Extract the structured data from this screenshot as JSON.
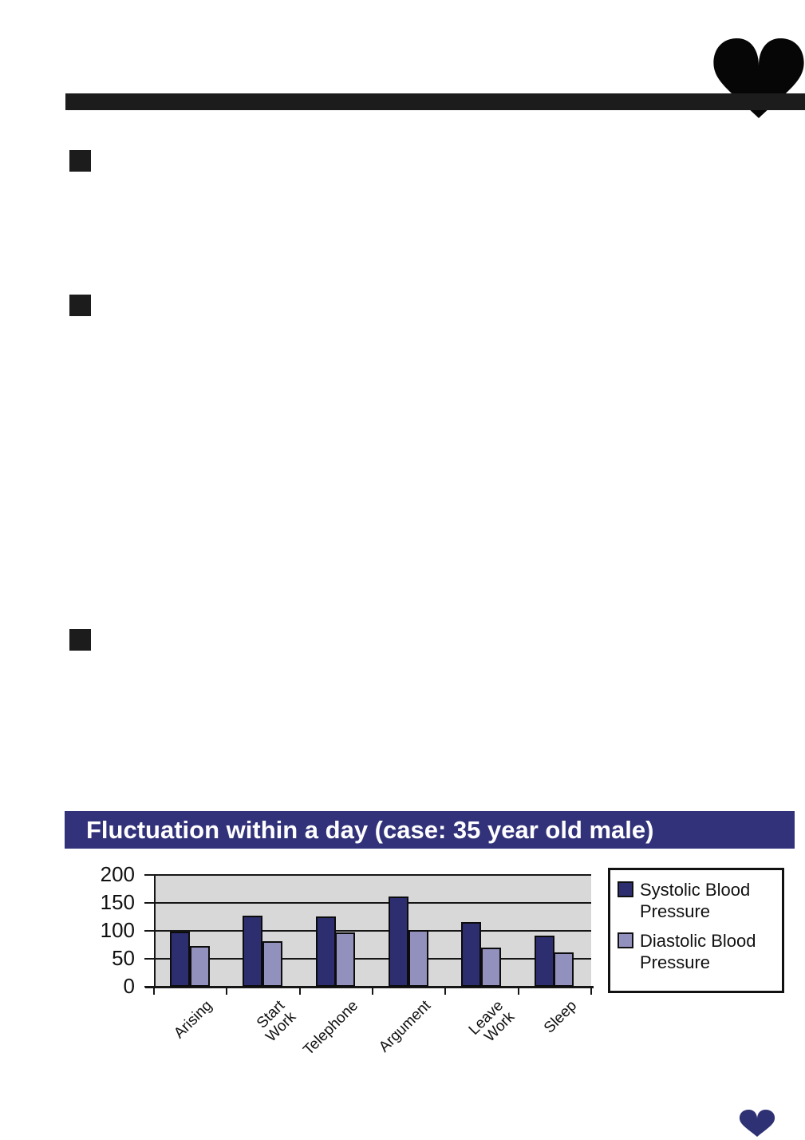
{
  "icons": {
    "top_right": "heart-icon",
    "bottom_right": "heart-icon"
  },
  "colors": {
    "ink": "#1c1c1c",
    "heart_top": "#060606",
    "heart_bottom": "#2e3173",
    "banner_bg": "#32327a",
    "banner_text": "#ffffff",
    "axis": "#161616",
    "systolic": "#2d2e70",
    "diastolic": "#9290bd",
    "plot_bg": "#d8d8d8",
    "legend_border": "#111111"
  },
  "chart_data": {
    "type": "bar",
    "title": "Fluctuation within a day (case: 35 year old male)",
    "categories": [
      "Arising",
      "Start Work",
      "Telephone",
      "Argument",
      "Leave Work",
      "Sleep"
    ],
    "series": [
      {
        "name": "Systolic Blood Pressure",
        "color": "#2d2e70",
        "values": [
          98,
          127,
          126,
          162,
          116,
          91
        ]
      },
      {
        "name": "Diastolic Blood Pressure",
        "color": "#9290bd",
        "values": [
          73,
          82,
          97,
          102,
          70,
          62
        ]
      }
    ],
    "xlabel": "",
    "ylabel": "",
    "ylim": [
      0,
      200
    ],
    "yticks": [
      0,
      50,
      100,
      150,
      200
    ],
    "grid": true,
    "grid_direction": "horizontal",
    "plot_bg": "#d8d8d8",
    "legend_position": "right"
  }
}
